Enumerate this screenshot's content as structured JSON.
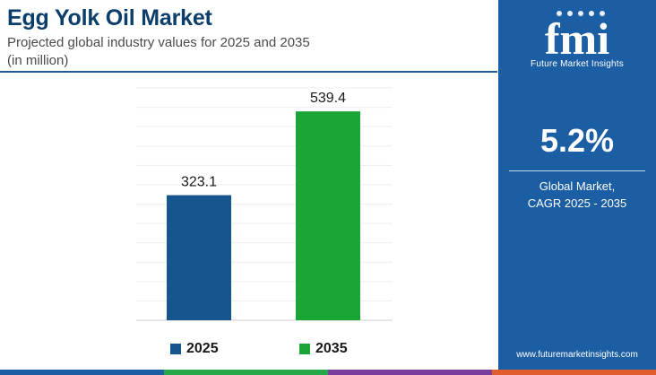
{
  "title": "Egg Yolk Oil Market",
  "subtitle_line1": "Projected global industry values for 2025 and 2035",
  "subtitle_line2": "(in million)",
  "chart_data": {
    "type": "bar",
    "categories": [
      "2025",
      "2035"
    ],
    "values": [
      323.1,
      539.4
    ],
    "value_labels": [
      "323.1",
      "539.4"
    ],
    "colors": [
      "#17558f",
      "#1aa537"
    ],
    "ylim": [
      0,
      600
    ],
    "grid": true,
    "legend_position": "bottom"
  },
  "panel": {
    "logo_text": "fmi",
    "logo_tagline": "Future Market Insights",
    "cagr_value": "5.2%",
    "cagr_label_line1": "Global Market,",
    "cagr_label_line2": "CAGR 2025 - 2035",
    "website": "www.futuremarketinsights.com",
    "background_color": "#1c5ea3"
  },
  "bottom_bar_colors": [
    "#1c5ea3",
    "#27a84a",
    "#7a3f9d",
    "#e25d2e"
  ]
}
